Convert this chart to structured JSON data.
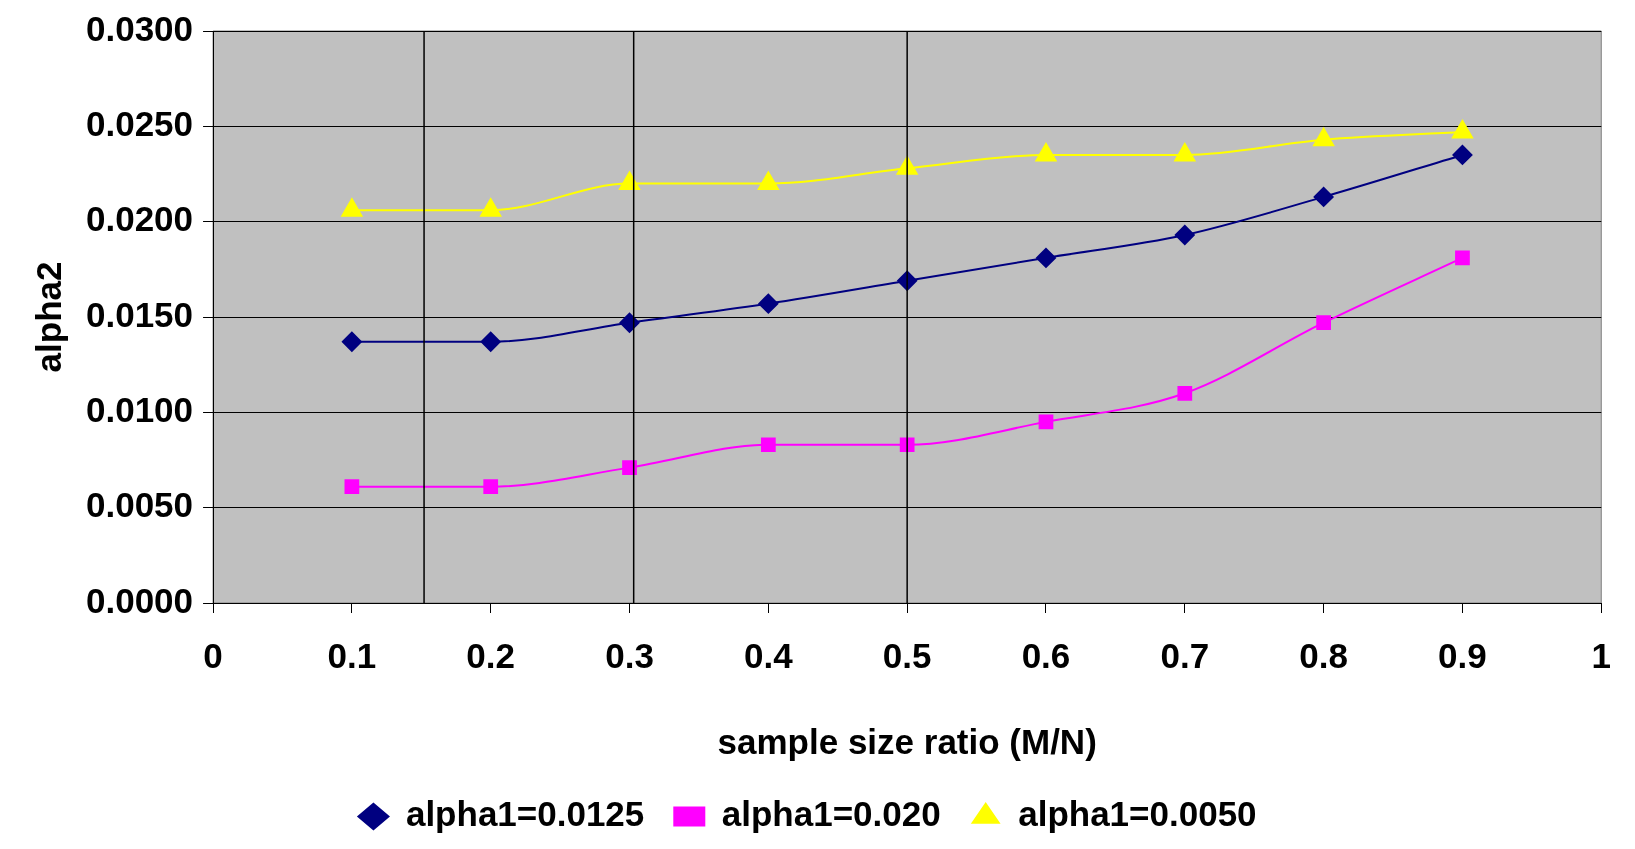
{
  "chart_data": {
    "type": "line",
    "xlabel": "sample size ratio (M/N)",
    "ylabel": "alpha2",
    "x": [
      0.1,
      0.2,
      0.3,
      0.4,
      0.5,
      0.6,
      0.7,
      0.8,
      0.9
    ],
    "series": [
      {
        "name": "alpha1=0.0125",
        "color": "#000080",
        "marker": "diamond",
        "values": [
          0.0137,
          0.0137,
          0.0147,
          0.0157,
          0.0169,
          0.0181,
          0.0193,
          0.0213,
          0.0235
        ]
      },
      {
        "name": "alpha1=0.020",
        "color": "#ff00ff",
        "marker": "square",
        "values": [
          0.0061,
          0.0061,
          0.0071,
          0.0083,
          0.0083,
          0.0095,
          0.011,
          0.0147,
          0.0181
        ]
      },
      {
        "name": "alpha1=0.0050",
        "color": "#ffff00",
        "marker": "triangle",
        "values": [
          0.0206,
          0.0206,
          0.022,
          0.022,
          0.0228,
          0.0235,
          0.0235,
          0.0243,
          0.0247
        ]
      }
    ],
    "xlim": [
      0,
      1
    ],
    "xticks": [
      0,
      0.1,
      0.2,
      0.3,
      0.4,
      0.5,
      0.6,
      0.7,
      0.8,
      0.9,
      1
    ],
    "ylim": [
      0,
      0.03
    ],
    "yticks": [
      {
        "value": 0,
        "label": "0.0000"
      },
      {
        "value": 0.005,
        "label": "0.0050"
      },
      {
        "value": 0.01,
        "label": "0.0100"
      },
      {
        "value": 0.015,
        "label": "0.0150"
      },
      {
        "value": 0.02,
        "label": "0.0200"
      },
      {
        "value": 0.025,
        "label": "0.0250"
      },
      {
        "value": 0.03,
        "label": "0.0300"
      }
    ],
    "ref_lines": [
      {
        "axis": "x",
        "value": 0.152,
        "color": "#000000"
      },
      {
        "axis": "x",
        "value": 0.303,
        "color": "#000000"
      },
      {
        "axis": "x",
        "value": 0.5,
        "color": "#000000"
      }
    ],
    "grid": "y",
    "legend": "bottom"
  }
}
